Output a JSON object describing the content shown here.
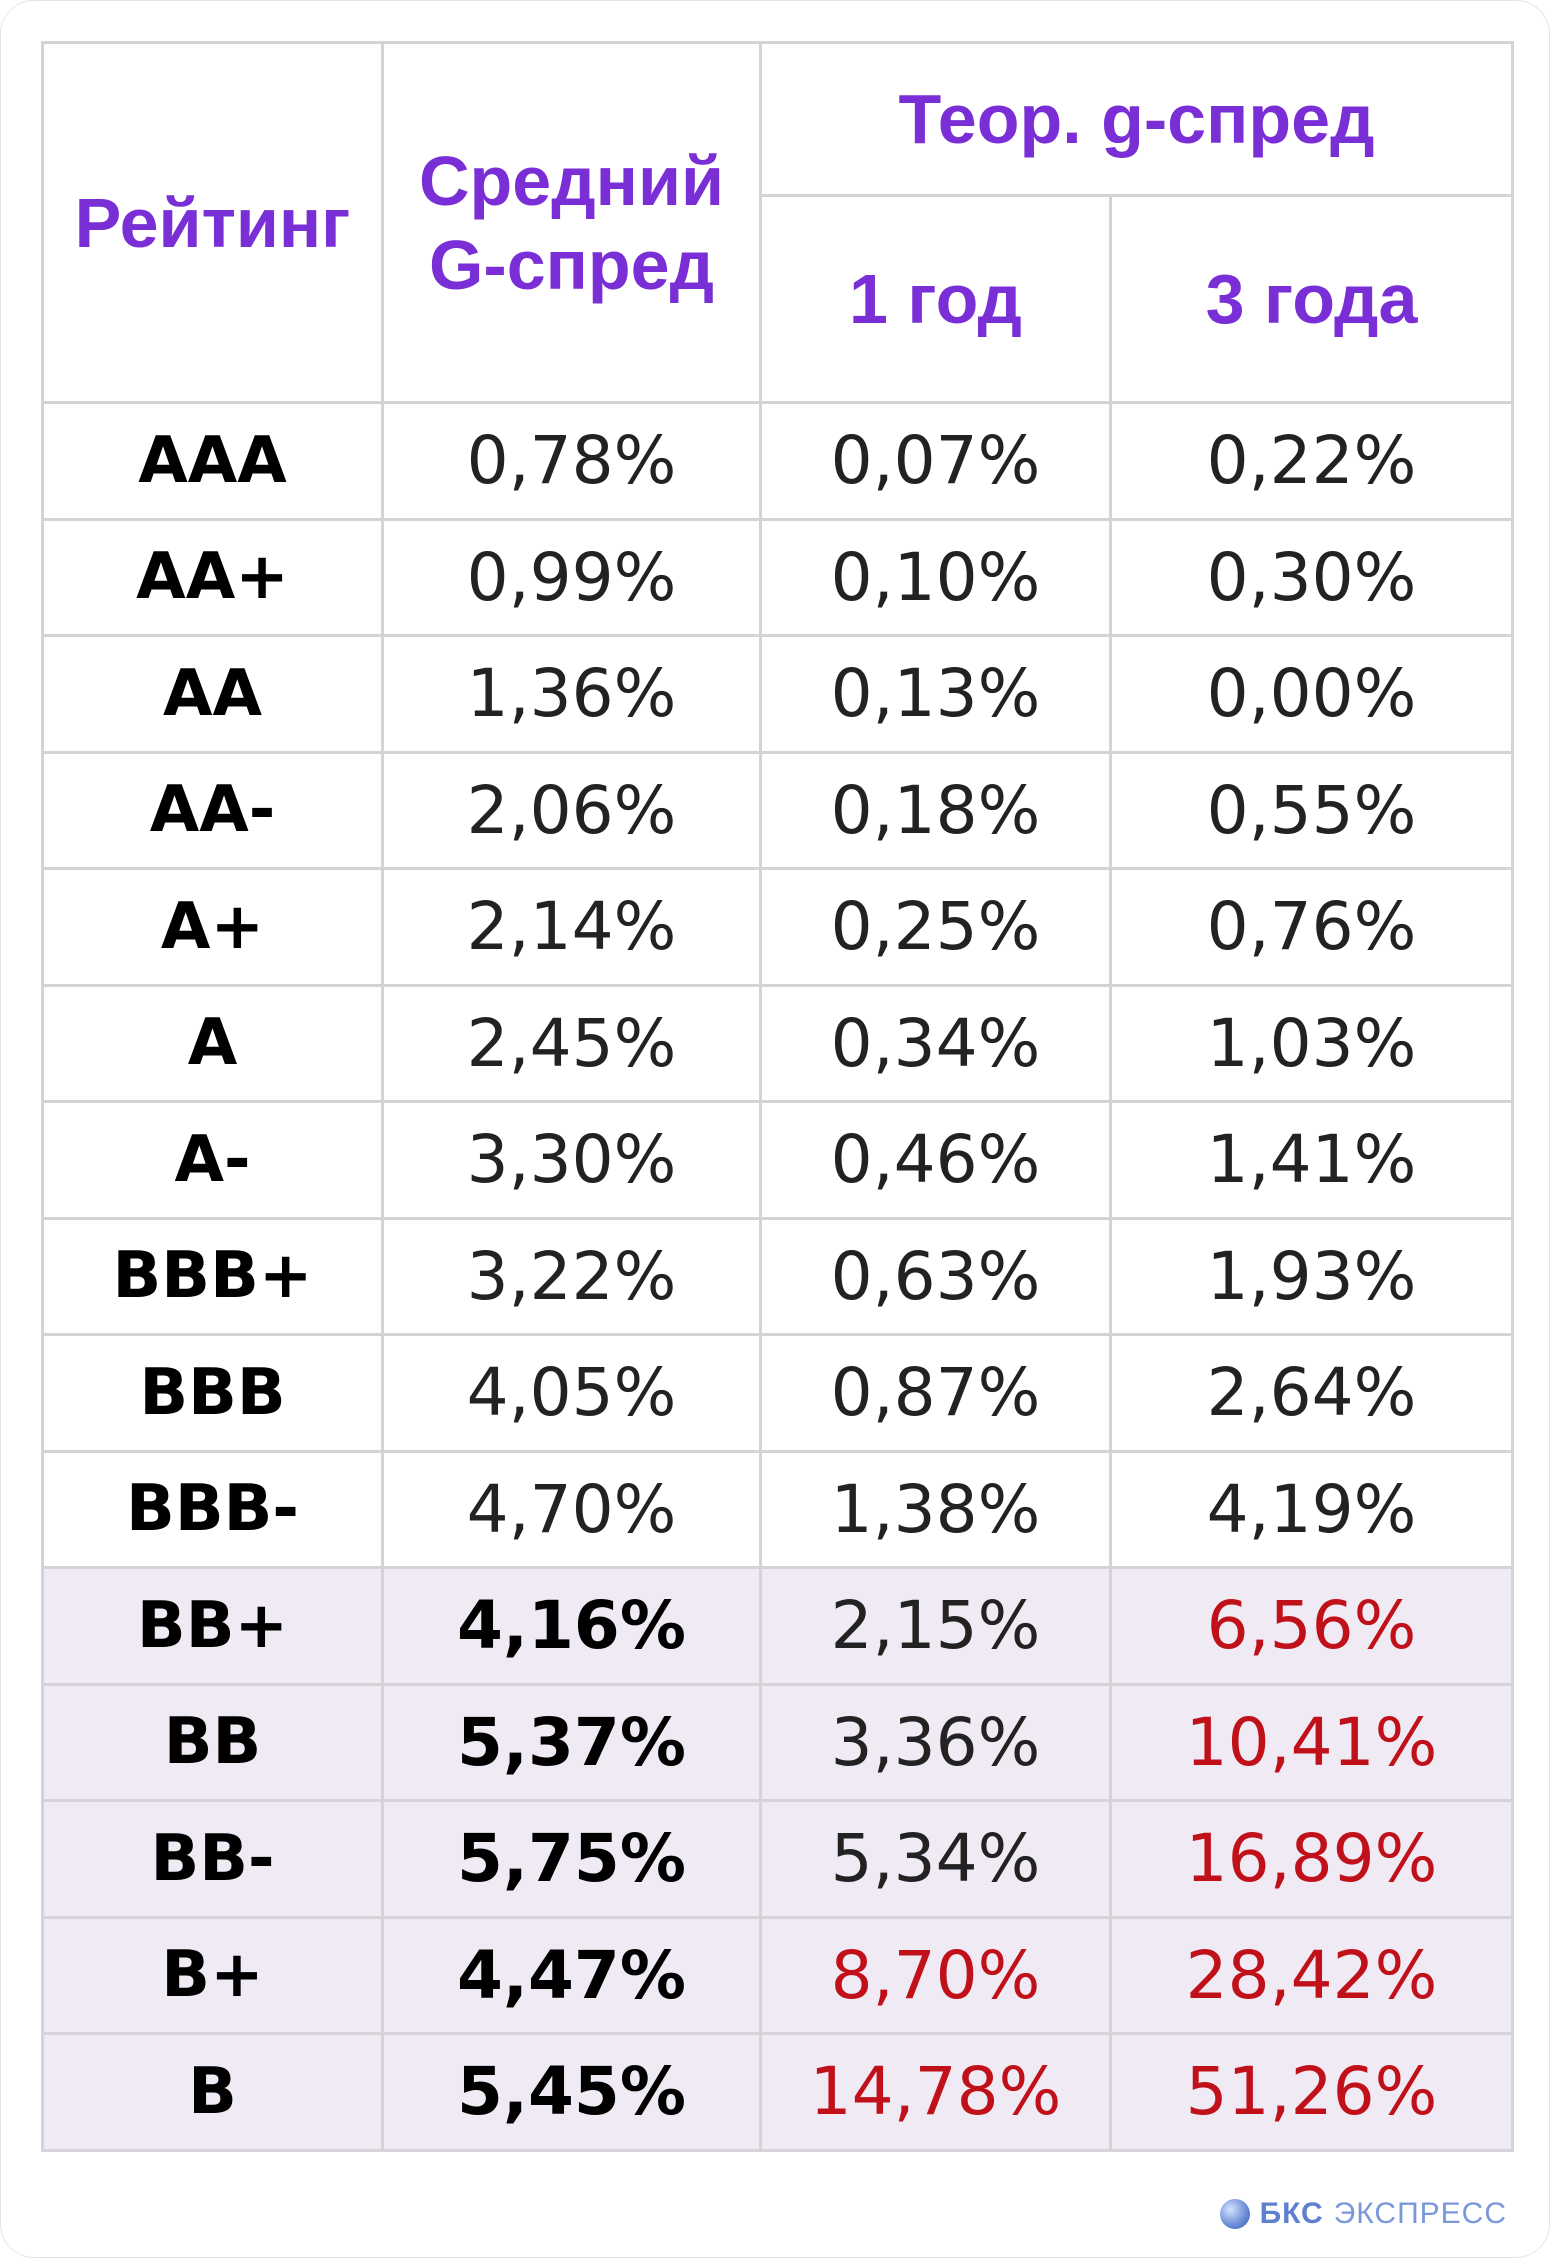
{
  "header": {
    "rating": "Рейтинг",
    "avg_spread_line1": "Средний",
    "avg_spread_line2": "G-спред",
    "theor_spread": "Теор. g-спред",
    "one_year": "1 год",
    "three_years": "3 года"
  },
  "rows": [
    {
      "rating": "AAA",
      "avg": "0,78%",
      "y1": "0,07%",
      "y3": "0,22%"
    },
    {
      "rating": "AA+",
      "avg": "0,99%",
      "y1": "0,10%",
      "y3": "0,30%"
    },
    {
      "rating": "AA",
      "avg": "1,36%",
      "y1": "0,13%",
      "y3": "0,00%"
    },
    {
      "rating": "AA-",
      "avg": "2,06%",
      "y1": "0,18%",
      "y3": "0,55%"
    },
    {
      "rating": "A+",
      "avg": "2,14%",
      "y1": "0,25%",
      "y3": "0,76%"
    },
    {
      "rating": "A",
      "avg": "2,45%",
      "y1": "0,34%",
      "y3": "1,03%"
    },
    {
      "rating": "A-",
      "avg": "3,30%",
      "y1": "0,46%",
      "y3": "1,41%"
    },
    {
      "rating": "BBB+",
      "avg": "3,22%",
      "y1": "0,63%",
      "y3": "1,93%"
    },
    {
      "rating": "BBB",
      "avg": "4,05%",
      "y1": "0,87%",
      "y3": "2,64%"
    },
    {
      "rating": "BBB-",
      "avg": "4,70%",
      "y1": "1,38%",
      "y3": "4,19%"
    },
    {
      "rating": "BB+",
      "avg": "4,16%",
      "y1": "2,15%",
      "y3": "6,56%"
    },
    {
      "rating": "BB",
      "avg": "5,37%",
      "y1": "3,36%",
      "y3": "10,41%"
    },
    {
      "rating": "BB-",
      "avg": "5,75%",
      "y1": "5,34%",
      "y3": "16,89%"
    },
    {
      "rating": "B+",
      "avg": "4,47%",
      "y1": "8,70%",
      "y3": "28,42%"
    },
    {
      "rating": "B",
      "avg": "5,45%",
      "y1": "14,78%",
      "y3": "51,26%"
    }
  ],
  "colors": {
    "header_text": "#7a2fd6",
    "highlight_red": "#c0111a",
    "shaded_row_bg": "#efeaf4",
    "border": "#d4d4d8"
  },
  "logo": {
    "brand": "БКС",
    "name": "ЭКСПРЕСС"
  }
}
